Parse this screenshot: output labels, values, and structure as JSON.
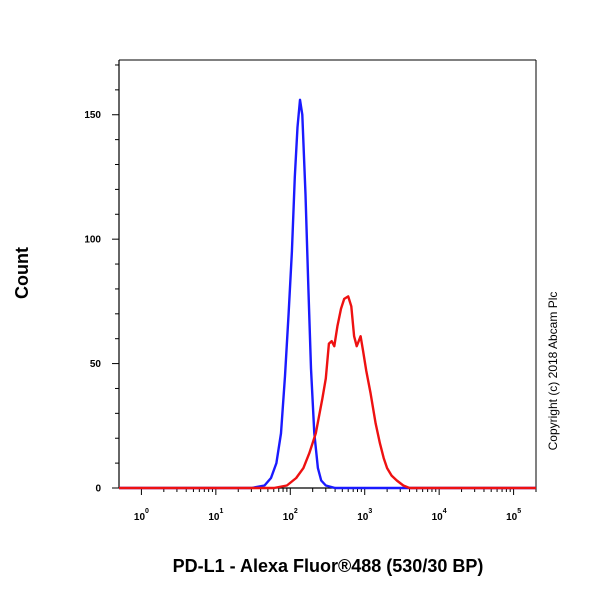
{
  "chart_data": {
    "type": "line",
    "xlabel": "PD-L1 - Alexa Fluor®488 (530/30 BP)",
    "ylabel": "Count",
    "x_scale": "log",
    "xlim": [
      0.5,
      200000
    ],
    "ylim": [
      0,
      172
    ],
    "x_ticks": [
      {
        "value": 1,
        "base": "10",
        "exp": "0"
      },
      {
        "value": 10,
        "base": "10",
        "exp": "1"
      },
      {
        "value": 100,
        "base": "10",
        "exp": "2"
      },
      {
        "value": 1000,
        "base": "10",
        "exp": "3"
      },
      {
        "value": 10000,
        "base": "10",
        "exp": "4"
      },
      {
        "value": 100000,
        "base": "10",
        "exp": "5"
      }
    ],
    "y_ticks": [
      "0",
      "50",
      "100",
      "150"
    ],
    "grid": false,
    "series": [
      {
        "color": "#1a1aff",
        "points": [
          [
            0.5,
            0
          ],
          [
            30,
            0
          ],
          [
            45,
            1
          ],
          [
            55,
            4
          ],
          [
            65,
            10
          ],
          [
            75,
            22
          ],
          [
            85,
            45
          ],
          [
            95,
            70
          ],
          [
            105,
            95
          ],
          [
            115,
            125
          ],
          [
            125,
            145
          ],
          [
            135,
            156
          ],
          [
            145,
            150
          ],
          [
            160,
            118
          ],
          [
            175,
            80
          ],
          [
            190,
            48
          ],
          [
            210,
            22
          ],
          [
            235,
            8
          ],
          [
            260,
            3
          ],
          [
            300,
            1
          ],
          [
            400,
            0
          ],
          [
            200000,
            0
          ]
        ]
      },
      {
        "color": "#ee1111",
        "points": [
          [
            0.5,
            0
          ],
          [
            60,
            0
          ],
          [
            90,
            1
          ],
          [
            120,
            4
          ],
          [
            150,
            8
          ],
          [
            180,
            14
          ],
          [
            220,
            22
          ],
          [
            270,
            36
          ],
          [
            300,
            44
          ],
          [
            330,
            58
          ],
          [
            360,
            59
          ],
          [
            390,
            57
          ],
          [
            430,
            65
          ],
          [
            480,
            72
          ],
          [
            530,
            76
          ],
          [
            600,
            77
          ],
          [
            660,
            73
          ],
          [
            720,
            61
          ],
          [
            780,
            57
          ],
          [
            830,
            59
          ],
          [
            880,
            61
          ],
          [
            950,
            55
          ],
          [
            1050,
            47
          ],
          [
            1200,
            38
          ],
          [
            1400,
            26
          ],
          [
            1600,
            18
          ],
          [
            1800,
            12
          ],
          [
            2000,
            8
          ],
          [
            2300,
            5
          ],
          [
            2700,
            3
          ],
          [
            3300,
            1
          ],
          [
            4000,
            0
          ],
          [
            200000,
            0
          ]
        ]
      }
    ]
  },
  "watermark": "Copyright (c) 2018 Abcam Plc"
}
